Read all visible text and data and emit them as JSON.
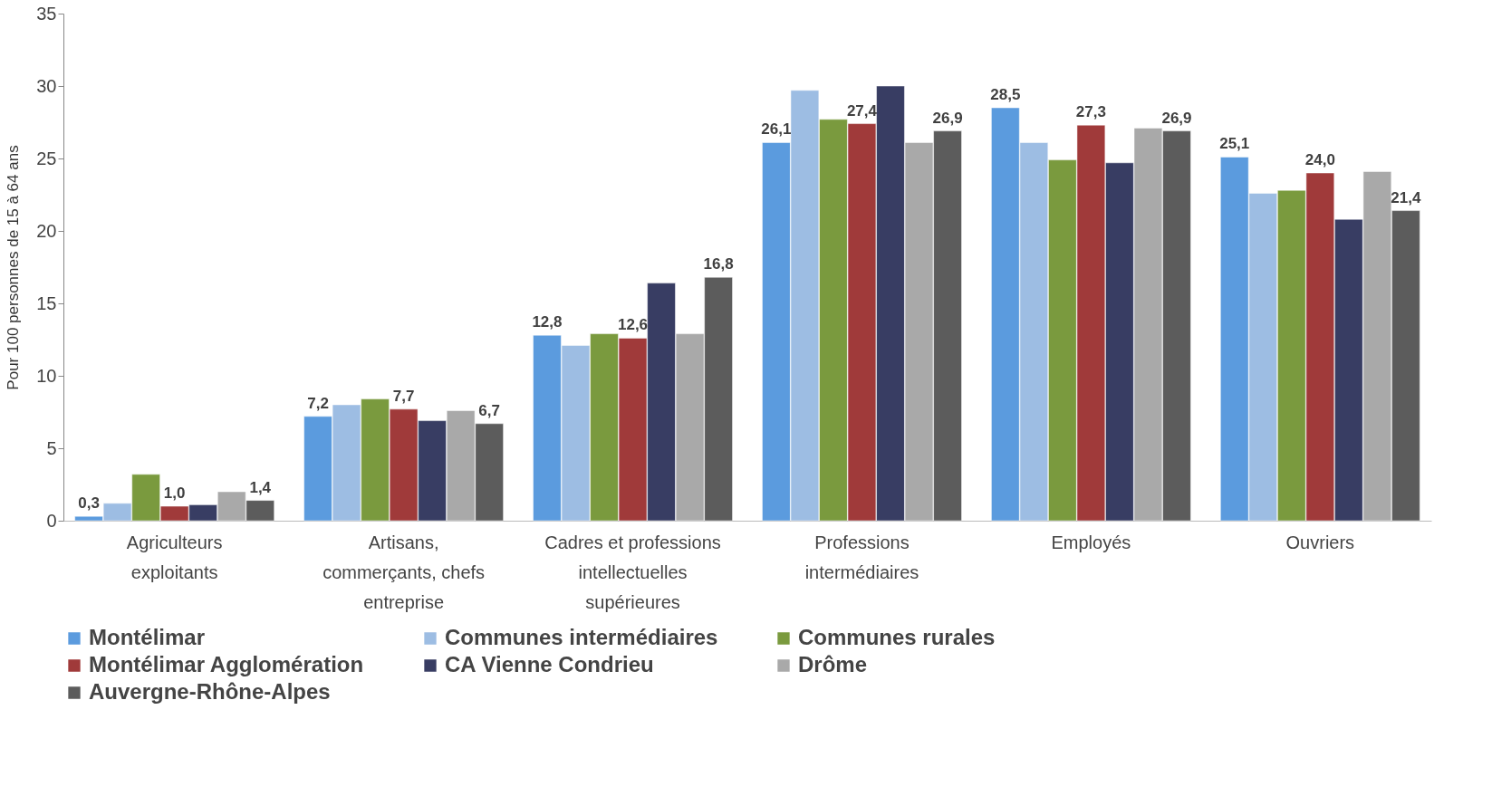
{
  "chart_data": {
    "type": "bar",
    "ylabel": "Pour 100 personnes de 15 à 64 ans",
    "categories": [
      "Agriculteurs exploitants",
      "Artisans, commerçants, chefs entreprise",
      "Cadres et professions intellectuelles supérieures",
      "Professions intermédiaires",
      "Employés",
      "Ouvriers"
    ],
    "series": [
      {
        "name": "Montélimar",
        "color": "#5b9bde",
        "values": [
          0.3,
          7.2,
          12.8,
          26.1,
          28.5,
          25.1
        ],
        "value_labels": [
          "0,3",
          "7,2",
          "12,8",
          "26,1",
          "28,5",
          "25,1"
        ]
      },
      {
        "name": "Communes intermédiaires",
        "color": "#9dbde3",
        "values": [
          1.2,
          8.0,
          12.1,
          29.7,
          26.1,
          22.6
        ]
      },
      {
        "name": "Communes rurales",
        "color": "#7a9a3e",
        "values": [
          3.2,
          8.4,
          12.9,
          27.7,
          24.9,
          22.8
        ]
      },
      {
        "name": "Montélimar Agglomération",
        "color": "#a03a3a",
        "values": [
          1.0,
          7.7,
          12.6,
          27.4,
          27.3,
          24.0
        ],
        "value_labels": [
          "1,0",
          "7,7",
          "12,6",
          "27,4",
          "27,3",
          "24,0"
        ]
      },
      {
        "name": "CA Vienne Condrieu",
        "color": "#383d63",
        "values": [
          1.1,
          6.9,
          16.4,
          30.0,
          24.7,
          20.8
        ]
      },
      {
        "name": "Drôme",
        "color": "#a9a9a9",
        "values": [
          2.0,
          7.6,
          12.9,
          26.1,
          27.1,
          24.1
        ]
      },
      {
        "name": "Auvergne-Rhône-Alpes",
        "color": "#5c5c5c",
        "values": [
          1.4,
          6.7,
          16.8,
          26.9,
          26.9,
          21.4
        ],
        "value_labels": [
          "1,4",
          "6,7",
          "16,8",
          "26,9",
          "26,9",
          "21,4"
        ]
      }
    ],
    "ylim": [
      0,
      35
    ],
    "yticks": [
      0,
      5,
      10,
      15,
      20,
      25,
      30,
      35
    ],
    "grid": false,
    "legend": "bottom"
  }
}
